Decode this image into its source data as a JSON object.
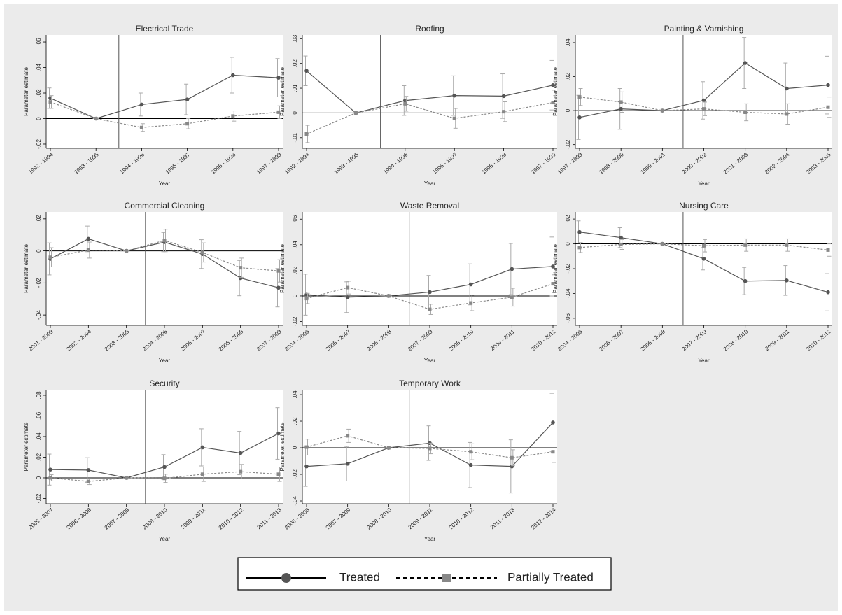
{
  "chart_data": [
    {
      "type": "line",
      "title": "Electrical Trade",
      "x_label": "Year",
      "y_label": "Parameter estimate",
      "categories": [
        "1992 - 1994",
        "1993 - 1995",
        "1994 - 1996",
        "1995 - 1997",
        "1996 - 1998",
        "1997 - 1999"
      ],
      "ylim": [
        -0.0233,
        0.0655
      ],
      "yticks": [
        {
          "value": -0.02,
          "label": "-.02"
        },
        0,
        {
          "value": 0.02,
          "label": ".02"
        },
        {
          "value": 0.04,
          "label": ".04"
        },
        {
          "value": 0.06,
          "label": ".06"
        }
      ],
      "hline": 0,
      "vline": 1.5,
      "series": [
        {
          "name": "Treated",
          "color": "#555555",
          "line_style": "solid",
          "marker": "circle",
          "values": [
            0.016,
            0,
            0.011,
            0.015,
            0.034,
            0.032
          ],
          "errors": [
            0.008,
            0,
            0.009,
            0.012,
            0.014,
            0.015
          ]
        },
        {
          "name": "Partially Treated",
          "color": "#888888",
          "line_style": "dashed",
          "marker": "square",
          "values": [
            0.013,
            0,
            -0.007,
            -0.004,
            0.002,
            0.005
          ],
          "errors": [
            0.005,
            0,
            0.003,
            0.004,
            0.004,
            0.005
          ]
        }
      ]
    },
    {
      "type": "line",
      "title": "Roofing",
      "x_label": "Year",
      "y_label": "Parameter estimate",
      "categories": [
        "1992 - 1994",
        "1993 - 1995",
        "1994 - 1996",
        "1995 - 1997",
        "1996 - 1998",
        "1997 - 1999"
      ],
      "ylim": [
        -0.0143,
        0.0315
      ],
      "yticks": [
        {
          "value": -0.01,
          "label": "-.01"
        },
        0,
        {
          "value": 0.01,
          "label": ".01"
        },
        {
          "value": 0.02,
          "label": ".02"
        },
        {
          "value": 0.03,
          "label": ".03"
        }
      ],
      "hline": 0,
      "vline": 1.5,
      "series": [
        {
          "name": "Treated",
          "color": "#555555",
          "line_style": "solid",
          "marker": "circle",
          "values": [
            0.017,
            0,
            0.005,
            0.007,
            0.0068,
            0.0112
          ],
          "errors": [
            0.006,
            0,
            0.006,
            0.008,
            0.009,
            0.01
          ]
        },
        {
          "name": "Partially Treated",
          "color": "#888888",
          "line_style": "dashed",
          "marker": "square",
          "values": [
            -0.0085,
            0,
            0.0037,
            -0.0022,
            0.0005,
            0.0042
          ],
          "errors": [
            0.0035,
            0,
            0.003,
            0.004,
            0.004,
            0.005
          ]
        }
      ]
    },
    {
      "type": "line",
      "title": "Painting & Varnishing",
      "x_label": "Year",
      "y_label": "Parameter estimate",
      "categories": [
        "1997 - 1999",
        "1998 - 2000",
        "1999 - 2001",
        "2000 - 2002",
        "2001 - 2003",
        "2002 - 2004",
        "2003 - 2005"
      ],
      "ylim": [
        -0.0222,
        0.0445
      ],
      "yticks": [
        {
          "value": -0.02,
          "label": "-.02"
        },
        0,
        {
          "value": 0.02,
          "label": ".02"
        },
        {
          "value": 0.04,
          "label": ".04"
        }
      ],
      "hline": 0,
      "vline": 2.5,
      "series": [
        {
          "name": "Treated",
          "color": "#555555",
          "line_style": "solid",
          "marker": "circle",
          "values": [
            -0.004,
            0.001,
            0,
            0.006,
            0.028,
            0.013,
            0.015
          ],
          "errors": [
            0.013,
            0.012,
            0,
            0.011,
            0.015,
            0.015,
            0.017
          ]
        },
        {
          "name": "Partially Treated",
          "color": "#888888",
          "line_style": "dashed",
          "marker": "square",
          "values": [
            0.008,
            0.005,
            0,
            0.001,
            -0.001,
            -0.002,
            0.002
          ],
          "errors": [
            0.005,
            0.006,
            0,
            0.004,
            0.005,
            0.006,
            0.006
          ]
        }
      ]
    },
    {
      "type": "line",
      "title": "Commercial Cleaning",
      "x_label": "Year",
      "y_label": "Parameter estimate",
      "categories": [
        "2001 - 2003",
        "2002 - 2004",
        "2003 - 2005",
        "2004 - 2006",
        "2005 - 2007",
        "2006 - 2008",
        "2007 - 2009"
      ],
      "ylim": [
        -0.0465,
        0.0243
      ],
      "yticks": [
        {
          "value": -0.04,
          "label": "-.04"
        },
        {
          "value": -0.02,
          "label": "-.02"
        },
        0,
        {
          "value": 0.02,
          "label": ".02"
        }
      ],
      "hline": 0,
      "vline": 2.5,
      "series": [
        {
          "name": "Treated",
          "color": "#555555",
          "line_style": "solid",
          "marker": "circle",
          "values": [
            -0.005,
            0.0075,
            0,
            0.0055,
            -0.002,
            -0.017,
            -0.023
          ],
          "errors": [
            0.01,
            0.008,
            0,
            0.006,
            0.009,
            0.011,
            0.012
          ]
        },
        {
          "name": "Partially Treated",
          "color": "#888888",
          "line_style": "dashed",
          "marker": "square",
          "values": [
            -0.004,
            0.0005,
            0,
            0.0065,
            -0.001,
            -0.0105,
            -0.0125
          ],
          "errors": [
            0.006,
            0.005,
            0,
            0.007,
            0.006,
            0.006,
            0.007
          ]
        }
      ]
    },
    {
      "type": "line",
      "title": "Waste Removal",
      "x_label": "Year",
      "y_label": "Parameter estimate",
      "categories": [
        "2004 - 2006",
        "2005 - 2007",
        "2006 - 2008",
        "2007 - 2009",
        "2008 - 2010",
        "2009 - 2011",
        "2010 - 2012"
      ],
      "ylim": [
        -0.023,
        0.0656
      ],
      "yticks": [
        {
          "value": -0.02,
          "label": "-.02"
        },
        0,
        {
          "value": 0.02,
          "label": ".02"
        },
        {
          "value": 0.04,
          "label": ".04"
        },
        {
          "value": 0.06,
          "label": ".06"
        }
      ],
      "hline": 0,
      "vline": 2.5,
      "series": [
        {
          "name": "Treated",
          "color": "#555555",
          "line_style": "solid",
          "marker": "circle",
          "values": [
            0.001,
            -0.001,
            0,
            0.003,
            0.009,
            0.021,
            0.023
          ],
          "errors": [
            0.016,
            0.012,
            0,
            0.013,
            0.016,
            0.02,
            0.023
          ]
        },
        {
          "name": "Partially Treated",
          "color": "#888888",
          "line_style": "dashed",
          "marker": "square",
          "values": [
            -0.002,
            0.0065,
            0,
            -0.0105,
            -0.0055,
            -0.001,
            0.0095
          ],
          "errors": [
            0.004,
            0.005,
            0,
            0.004,
            0.006,
            0.007,
            0.007
          ]
        }
      ]
    },
    {
      "type": "line",
      "title": "Nursing Care",
      "x_label": "Year",
      "y_label": "Parameter estimate",
      "categories": [
        "2004 - 2006",
        "2005 - 2007",
        "2006 - 2008",
        "2007 - 2009",
        "2008 - 2010",
        "2009 - 2011",
        "2010 - 2012"
      ],
      "ylim": [
        -0.0657,
        0.0257
      ],
      "yticks": [
        {
          "value": -0.06,
          "label": "-.06"
        },
        {
          "value": -0.04,
          "label": "-.04"
        },
        {
          "value": -0.02,
          "label": "-.02"
        },
        0,
        {
          "value": 0.02,
          "label": ".02"
        }
      ],
      "hline": 0,
      "vline": 2.5,
      "series": [
        {
          "name": "Treated",
          "color": "#555555",
          "line_style": "solid",
          "marker": "circle",
          "values": [
            0.0095,
            0.005,
            0,
            -0.012,
            -0.03,
            -0.0295,
            -0.039
          ],
          "errors": [
            0.009,
            0.008,
            0,
            0.009,
            0.011,
            0.012,
            0.015
          ]
        },
        {
          "name": "Partially Treated",
          "color": "#888888",
          "line_style": "dashed",
          "marker": "square",
          "values": [
            -0.003,
            -0.0005,
            0,
            -0.0015,
            -0.001,
            -0.001,
            -0.005
          ],
          "errors": [
            0.004,
            0.004,
            0,
            0.005,
            0.005,
            0.005,
            0.005
          ]
        }
      ]
    },
    {
      "type": "line",
      "title": "Security",
      "x_label": "Year",
      "y_label": "Parameter estimate",
      "categories": [
        "2005 - 2007",
        "2006 - 2008",
        "2007 - 2009",
        "2008 - 2010",
        "2009 - 2011",
        "2010 - 2012",
        "2011 - 2013"
      ],
      "ylim": [
        -0.0251,
        0.0854
      ],
      "yticks": [
        {
          "value": -0.02,
          "label": "-.02"
        },
        0,
        {
          "value": 0.02,
          "label": ".02"
        },
        {
          "value": 0.04,
          "label": ".04"
        },
        {
          "value": 0.06,
          "label": ".06"
        },
        {
          "value": 0.08,
          "label": ".08"
        }
      ],
      "hline": 0,
      "vline": 2.5,
      "series": [
        {
          "name": "Treated",
          "color": "#555555",
          "line_style": "solid",
          "marker": "circle",
          "values": [
            0.008,
            0.0075,
            0,
            0.0105,
            0.0295,
            0.024,
            0.043
          ],
          "errors": [
            0.015,
            0.012,
            0,
            0.012,
            0.018,
            0.021,
            0.025
          ]
        },
        {
          "name": "Partially Treated",
          "color": "#888888",
          "line_style": "dashed",
          "marker": "square",
          "values": [
            0,
            -0.0035,
            0,
            -0.0005,
            0.0035,
            0.006,
            0.0035
          ],
          "errors": [
            0.003,
            0.003,
            0,
            0.004,
            0.007,
            0.007,
            0.007
          ]
        }
      ]
    },
    {
      "type": "line",
      "title": "Temporary Work",
      "x_label": "Year",
      "y_label": "Parameter estimate",
      "categories": [
        "2006 - 2008",
        "2007 - 2009",
        "2008 - 2010",
        "2009 - 2011",
        "2010 - 2012",
        "2011 - 2013",
        "2012 - 2014"
      ],
      "ylim": [
        -0.0421,
        0.0437
      ],
      "yticks": [
        {
          "value": -0.04,
          "label": "-.04"
        },
        {
          "value": -0.02,
          "label": "-.02"
        },
        0,
        {
          "value": 0.02,
          "label": ".02"
        },
        {
          "value": 0.04,
          "label": ".04"
        }
      ],
      "hline": 0,
      "vline": 2.5,
      "series": [
        {
          "name": "Treated",
          "color": "#555555",
          "line_style": "solid",
          "marker": "circle",
          "values": [
            -0.014,
            -0.012,
            0,
            0.0035,
            -0.013,
            -0.014,
            0.019
          ],
          "errors": [
            0.015,
            0.013,
            0,
            0.013,
            0.017,
            0.02,
            0.022
          ]
        },
        {
          "name": "Partially Treated",
          "color": "#888888",
          "line_style": "dashed",
          "marker": "square",
          "values": [
            0.0005,
            0.009,
            0,
            -0.0005,
            -0.003,
            -0.0075,
            -0.003
          ],
          "errors": [
            0.006,
            0.005,
            0,
            0.004,
            0.006,
            0.006,
            0.008
          ]
        }
      ]
    }
  ]
}
